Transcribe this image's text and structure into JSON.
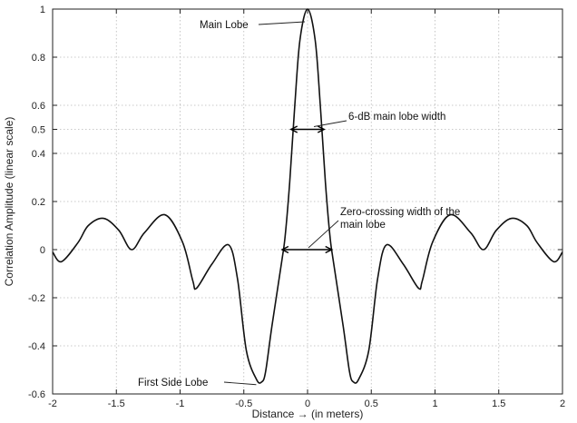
{
  "chart_data": {
    "type": "line",
    "title": "",
    "xlabel": "Distance → (in meters)",
    "ylabel": "Correlation Amplitude (linear scale)",
    "xlim": [
      -2,
      2
    ],
    "ylim": [
      -0.6,
      1
    ],
    "grid": true,
    "xticks": [
      -2,
      -1.5,
      -1,
      -0.5,
      0,
      0.5,
      1,
      1.5,
      2
    ],
    "xtick_labels": [
      "-2",
      "-1.5",
      "-1",
      "-0.5",
      "0",
      "0.5",
      "1",
      "1.5",
      "2"
    ],
    "yticks": [
      -0.6,
      -0.4,
      -0.2,
      0,
      0.2,
      0.4,
      0.5,
      0.6,
      0.8,
      1
    ],
    "ytick_labels": [
      "-0.6",
      "-0.4",
      "-0.2",
      "0",
      "0.2",
      "0.4",
      "0.5",
      "0.6",
      "0.8",
      "1"
    ],
    "series": [
      {
        "x": [
          -2,
          -1.93,
          -1.8,
          -1.72,
          -1.6,
          -1.48,
          -1.38,
          -1.28,
          -1.12,
          -0.98,
          -0.9,
          -0.87,
          -0.75,
          -0.62,
          -0.55,
          -0.48,
          -0.4,
          -0.36,
          -0.33,
          -0.28,
          -0.2,
          -0.175,
          -0.14,
          -0.1,
          -0.06,
          0,
          0.06,
          0.1,
          0.14,
          0.175,
          0.2,
          0.28,
          0.33,
          0.36,
          0.4,
          0.48,
          0.55,
          0.62,
          0.75,
          0.87,
          0.9,
          0.98,
          1.12,
          1.28,
          1.38,
          1.48,
          1.6,
          1.72,
          1.8,
          1.93,
          2
        ],
        "y": [
          -0.01,
          -0.05,
          0.03,
          0.1,
          0.13,
          0.08,
          0.0,
          0.07,
          0.145,
          0.03,
          -0.13,
          -0.16,
          -0.06,
          0.02,
          -0.12,
          -0.42,
          -0.54,
          -0.55,
          -0.51,
          -0.32,
          -0.04,
          0.06,
          0.28,
          0.6,
          0.87,
          1.0,
          0.87,
          0.6,
          0.28,
          0.06,
          -0.04,
          -0.32,
          -0.51,
          -0.55,
          -0.54,
          -0.42,
          -0.12,
          0.02,
          -0.06,
          -0.16,
          -0.13,
          0.03,
          0.145,
          0.07,
          0.0,
          0.08,
          0.13,
          0.1,
          0.03,
          -0.05,
          -0.01
        ]
      }
    ],
    "annotations": [
      {
        "text": "Main Lobe",
        "point": [
          0,
          1.0
        ]
      },
      {
        "text": "6-dB main lobe width",
        "span": [
          -0.13,
          0.13
        ],
        "y": 0.5
      },
      {
        "text": "Zero-crossing width of the\nmain lobe",
        "span": [
          -0.2,
          0.19
        ],
        "y": 0
      },
      {
        "text": "First Side Lobe",
        "point": [
          -0.36,
          -0.55
        ]
      }
    ]
  }
}
